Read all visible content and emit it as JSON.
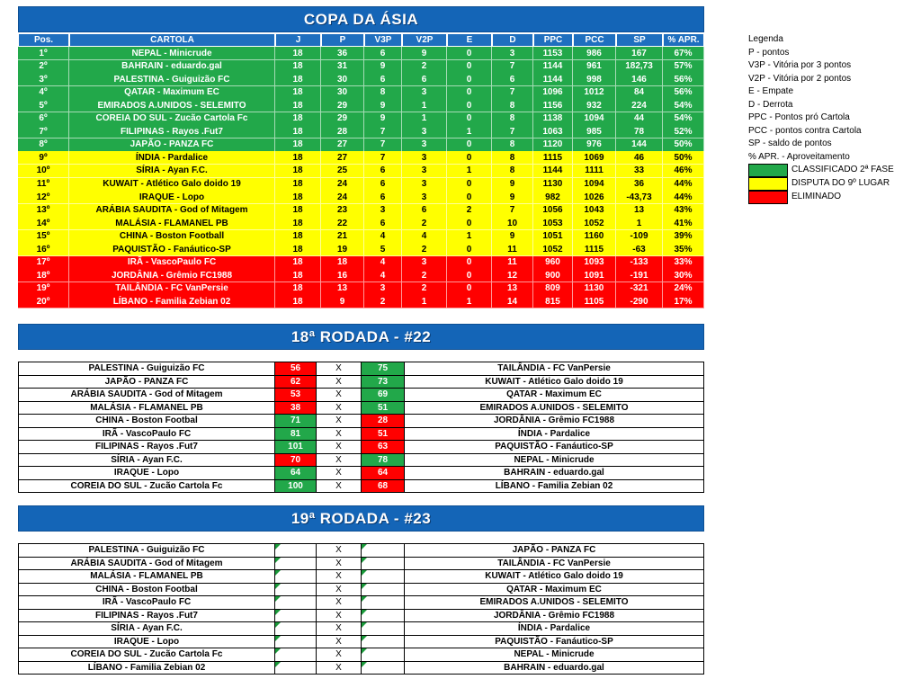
{
  "standings": {
    "title": "COPA DA ÁSIA",
    "header": [
      "Pos.",
      "CARTOLA",
      "J",
      "P",
      "V3P",
      "V2P",
      "E",
      "D",
      "PPC",
      "PCC",
      "SP",
      "% APR."
    ],
    "header_color": "#1f6fbf",
    "rows": [
      {
        "color": "#22a84a",
        "cells": [
          "1º",
          "NEPAL - Minicrude",
          18,
          36,
          6,
          9,
          0,
          3,
          1153,
          986,
          167,
          "67%"
        ]
      },
      {
        "color": "#22a84a",
        "cells": [
          "2º",
          "BAHRAIN - eduardo.gal",
          18,
          31,
          9,
          2,
          0,
          7,
          1144,
          961,
          "182,73",
          "57%"
        ]
      },
      {
        "color": "#22a84a",
        "cells": [
          "3º",
          "PALESTINA - Guiguizão FC",
          18,
          30,
          6,
          6,
          0,
          6,
          1144,
          998,
          146,
          "56%"
        ]
      },
      {
        "color": "#22a84a",
        "cells": [
          "4º",
          "QATAR - Maximum EC",
          18,
          30,
          8,
          3,
          0,
          7,
          1096,
          1012,
          84,
          "56%"
        ]
      },
      {
        "color": "#22a84a",
        "cells": [
          "5º",
          "EMIRADOS A.UNIDOS - SELEMITO",
          18,
          29,
          9,
          1,
          0,
          8,
          1156,
          932,
          224,
          "54%"
        ]
      },
      {
        "color": "#22a84a",
        "cells": [
          "6º",
          "COREIA DO SUL - Zucão Cartola Fc",
          18,
          29,
          9,
          1,
          0,
          8,
          1138,
          1094,
          44,
          "54%"
        ]
      },
      {
        "color": "#22a84a",
        "cells": [
          "7º",
          "FILIPINAS - Rayos .Fut7",
          18,
          28,
          7,
          3,
          1,
          7,
          1063,
          985,
          78,
          "52%"
        ]
      },
      {
        "color": "#22a84a",
        "cells": [
          "8º",
          "JAPÃO - PANZA FC",
          18,
          27,
          7,
          3,
          0,
          8,
          1120,
          976,
          144,
          "50%"
        ]
      },
      {
        "color": "#ffff00",
        "cells": [
          "9º",
          "ÍNDIA - Pardalice",
          18,
          27,
          7,
          3,
          0,
          8,
          1115,
          1069,
          46,
          "50%"
        ]
      },
      {
        "color": "#ffff00",
        "cells": [
          "10º",
          "SÍRIA - Ayan F.C.",
          18,
          25,
          6,
          3,
          1,
          8,
          1144,
          1111,
          33,
          "46%"
        ]
      },
      {
        "color": "#ffff00",
        "cells": [
          "11º",
          "KUWAIT - Atlético Galo doido 19",
          18,
          24,
          6,
          3,
          0,
          9,
          1130,
          1094,
          36,
          "44%"
        ]
      },
      {
        "color": "#ffff00",
        "cells": [
          "12º",
          "IRAQUE - Lopo",
          18,
          24,
          6,
          3,
          0,
          9,
          982,
          1026,
          "-43,73",
          "44%"
        ]
      },
      {
        "color": "#ffff00",
        "cells": [
          "13º",
          "ARÁBIA SAUDITA - God of Mitagem",
          18,
          23,
          3,
          6,
          2,
          7,
          1056,
          1043,
          13,
          "43%"
        ]
      },
      {
        "color": "#ffff00",
        "cells": [
          "14º",
          "MALÁSIA - FLAMANEL PB",
          18,
          22,
          6,
          2,
          0,
          10,
          1053,
          1052,
          1,
          "41%"
        ]
      },
      {
        "color": "#ffff00",
        "cells": [
          "15º",
          "CHINA - Boston Football",
          18,
          21,
          4,
          4,
          1,
          9,
          1051,
          1160,
          -109,
          "39%"
        ]
      },
      {
        "color": "#ffff00",
        "cells": [
          "16º",
          "PAQUISTÃO - Fanáutico-SP",
          18,
          19,
          5,
          2,
          0,
          11,
          1052,
          1115,
          -63,
          "35%"
        ]
      },
      {
        "color": "#ff0000",
        "cells": [
          "17º",
          "IRÃ - VascoPaulo FC",
          18,
          18,
          4,
          3,
          0,
          11,
          960,
          1093,
          -133,
          "33%"
        ]
      },
      {
        "color": "#ff0000",
        "cells": [
          "18º",
          "JORDÂNIA - Grêmio FC1988",
          18,
          16,
          4,
          2,
          0,
          12,
          900,
          1091,
          -191,
          "30%"
        ]
      },
      {
        "color": "#ff0000",
        "cells": [
          "19º",
          "TAILÂNDIA - FC VanPersie",
          18,
          13,
          3,
          2,
          0,
          13,
          809,
          1130,
          -321,
          "24%"
        ]
      },
      {
        "color": "#ff0000",
        "cells": [
          "20º",
          "LÍBANO - Familia Zebian 02",
          18,
          9,
          2,
          1,
          1,
          14,
          815,
          1105,
          -290,
          "17%"
        ]
      }
    ]
  },
  "legend": {
    "title": "Legenda",
    "lines": [
      "P - pontos",
      "V3P - Vitória por 3 pontos",
      "V2P - Vitória por 2 pontos",
      "E - Empate",
      "D - Derrota",
      "PPC - Pontos pró Cartola",
      "PCC - pontos contra Cartola",
      "SP - saldo de pontos",
      "% APR. - Aproveitamento"
    ],
    "items": [
      {
        "color": "#22a84a",
        "label": "CLASSIFICADO 2ª FASE"
      },
      {
        "color": "#ffff00",
        "label": "DISPUTA DO 9º LUGAR"
      },
      {
        "color": "#ff0000",
        "label": "ELIMINADO"
      }
    ]
  },
  "rounds": [
    {
      "title": "18ª RODADA - #22",
      "vs": "X",
      "matches": [
        {
          "home": "PALESTINA - Guiguizão FC",
          "home_score": 56,
          "home_color": "#ff0000",
          "away_score": 75,
          "away_color": "#22a84a",
          "away": "TAILÂNDIA - FC VanPersie"
        },
        {
          "home": "JAPÃO - PANZA FC",
          "home_score": 62,
          "home_color": "#ff0000",
          "away_score": 73,
          "away_color": "#22a84a",
          "away": "KUWAIT - Atlético Galo doido 19"
        },
        {
          "home": "ARÁBIA SAUDITA - God of Mitagem",
          "home_score": 53,
          "home_color": "#ff0000",
          "away_score": 69,
          "away_color": "#22a84a",
          "away": "QATAR - Maximum EC"
        },
        {
          "home": "MALÁSIA - FLAMANEL PB",
          "home_score": 38,
          "home_color": "#ff0000",
          "away_score": 51,
          "away_color": "#22a84a",
          "away": "EMIRADOS A.UNIDOS - SELEMITO"
        },
        {
          "home": "CHINA - Boston Footbal",
          "home_score": 71,
          "home_color": "#22a84a",
          "away_score": 28,
          "away_color": "#ff0000",
          "away": "JORDÂNIA - Grêmio FC1988"
        },
        {
          "home": "IRÃ - VascoPaulo FC",
          "home_score": 81,
          "home_color": "#22a84a",
          "away_score": 51,
          "away_color": "#ff0000",
          "away": "ÍNDIA - Pardalice"
        },
        {
          "home": "FILIPINAS - Rayos .Fut7",
          "home_score": 101,
          "home_color": "#22a84a",
          "away_score": 63,
          "away_color": "#ff0000",
          "away": "PAQUISTÃO - Fanáutico-SP"
        },
        {
          "home": "SÍRIA - Ayan F.C.",
          "home_score": 70,
          "home_color": "#ff0000",
          "away_score": 78,
          "away_color": "#22a84a",
          "away": "NEPAL - Minicrude"
        },
        {
          "home": "IRAQUE - Lopo",
          "home_score": 64,
          "home_color": "#22a84a",
          "away_score": 64,
          "away_color": "#ff0000",
          "away": "BAHRAIN - eduardo.gal"
        },
        {
          "home": "COREIA DO SUL - Zucão Cartola Fc",
          "home_score": 100,
          "home_color": "#22a84a",
          "away_score": 68,
          "away_color": "#ff0000",
          "away": "LÍBANO - Familia Zebian 02"
        }
      ]
    },
    {
      "title": "19ª RODADA - #23",
      "vs": "X",
      "matches": [
        {
          "home": "PALESTINA - Guiguizão FC",
          "away": "JAPÃO - PANZA FC"
        },
        {
          "home": "ARÁBIA SAUDITA - God of Mitagem",
          "away": "TAILÂNDIA - FC VanPersie"
        },
        {
          "home": "MALÁSIA - FLAMANEL PB",
          "away": "KUWAIT - Atlético Galo doido 19"
        },
        {
          "home": "CHINA - Boston Footbal",
          "away": "QATAR - Maximum EC"
        },
        {
          "home": "IRÃ - VascoPaulo FC",
          "away": "EMIRADOS A.UNIDOS - SELEMITO"
        },
        {
          "home": "FILIPINAS - Rayos .Fut7",
          "away": "JORDÂNIA - Grêmio FC1988"
        },
        {
          "home": "SÍRIA - Ayan F.C.",
          "away": "ÍNDIA - Pardalice"
        },
        {
          "home": "IRAQUE - Lopo",
          "away": "PAQUISTÃO - Fanáutico-SP"
        },
        {
          "home": "COREIA DO SUL - Zucão Cartola Fc",
          "away": "NEPAL - Minicrude"
        },
        {
          "home": "LÍBANO - Familia Zebian 02",
          "away": "BAHRAIN - eduardo.gal"
        }
      ]
    }
  ]
}
